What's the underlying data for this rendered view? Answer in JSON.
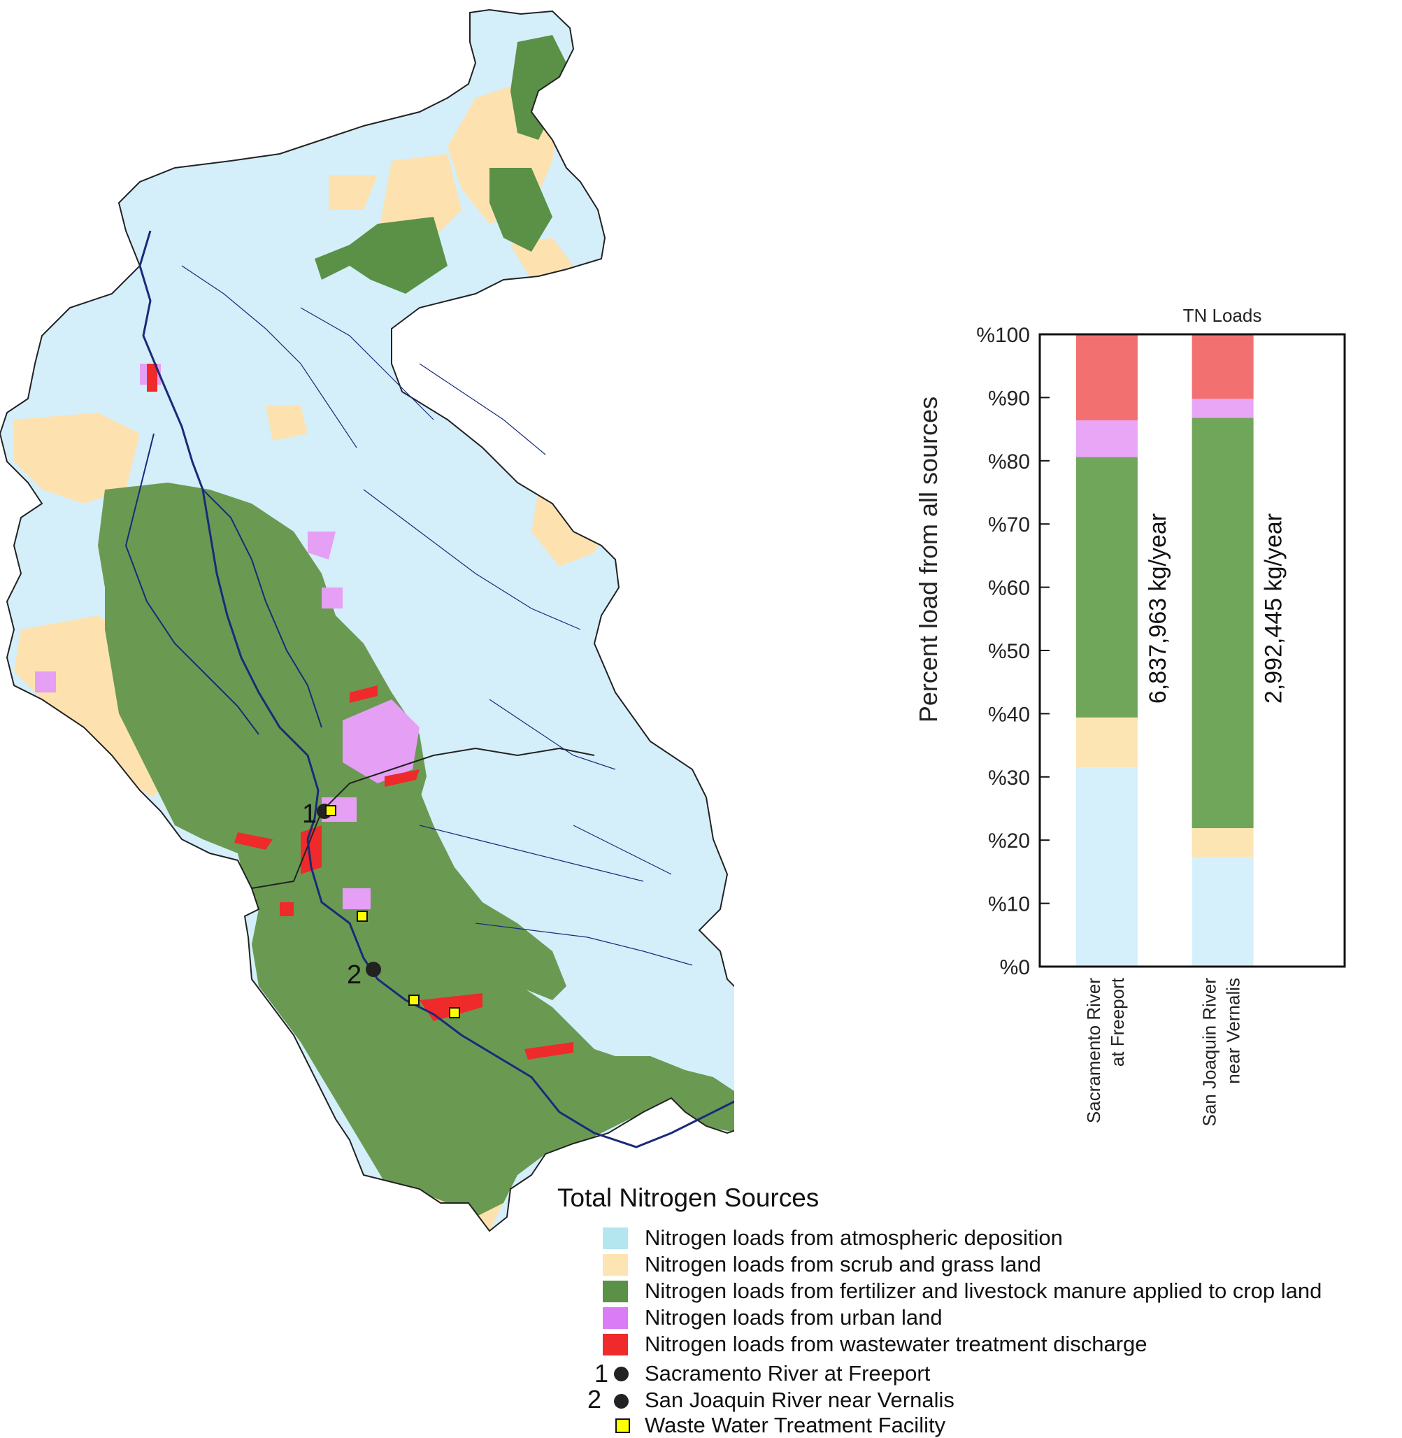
{
  "map": {
    "site_labels": [
      "1",
      "2"
    ]
  },
  "legend": {
    "title": "Total Nitrogen Sources",
    "sources": [
      {
        "label": "Nitrogen loads from atmospheric deposition",
        "color": "#b3e6ee"
      },
      {
        "label": "Nitrogen loads from scrub and grass land",
        "color": "#fde4b3"
      },
      {
        "label": "Nitrogen loads from fertilizer and livestock manure applied to crop land",
        "color": "#5a9147"
      },
      {
        "label": "Nitrogen loads from urban land",
        "color": "#d97cf5"
      },
      {
        "label": "Nitrogen loads from wastewater treatment discharge",
        "color": "#ee2a2a"
      }
    ],
    "sites": [
      {
        "number": "1",
        "label": "Sacramento River at Freeport"
      },
      {
        "number": "2",
        "label": "San Joaquin River near Vernalis"
      }
    ],
    "facility_label": "Waste Water Treatment Facility"
  },
  "land_colors": {
    "atmospheric": "#d4eefa",
    "scrub": "#fde2b0",
    "crop": "#6a9a52",
    "urban": "#e59ff5",
    "wastewater": "#f24c4c",
    "river": "#1a2a7a",
    "boundary": "#222222"
  },
  "chart_data": {
    "type": "bar",
    "stacked": true,
    "title": "TN Loads",
    "ylabel": "Percent load from all sources",
    "ylim": [
      0,
      100
    ],
    "yticks": [
      "%0",
      "%10",
      "%20",
      "%30",
      "%40",
      "%50",
      "%60",
      "%70",
      "%80",
      "%90",
      "%100"
    ],
    "categories": [
      [
        "Sacramento River",
        "at Freeport"
      ],
      [
        "San Joaquin River",
        "near Vernalis"
      ]
    ],
    "totals": [
      "6,837,963 kg/year",
      "2,992,445 kg/year"
    ],
    "series": [
      {
        "color": "#d6f0fb",
        "values": [
          31.5,
          17.3
        ]
      },
      {
        "color": "#fde4b3",
        "values": [
          7.9,
          4.6
        ]
      },
      {
        "color": "#70a65a",
        "values": [
          41.2,
          64.9
        ]
      },
      {
        "color": "#e9a6f7",
        "values": [
          5.8,
          3.0
        ]
      },
      {
        "color": "#f37070",
        "values": [
          13.6,
          10.2
        ]
      }
    ]
  }
}
